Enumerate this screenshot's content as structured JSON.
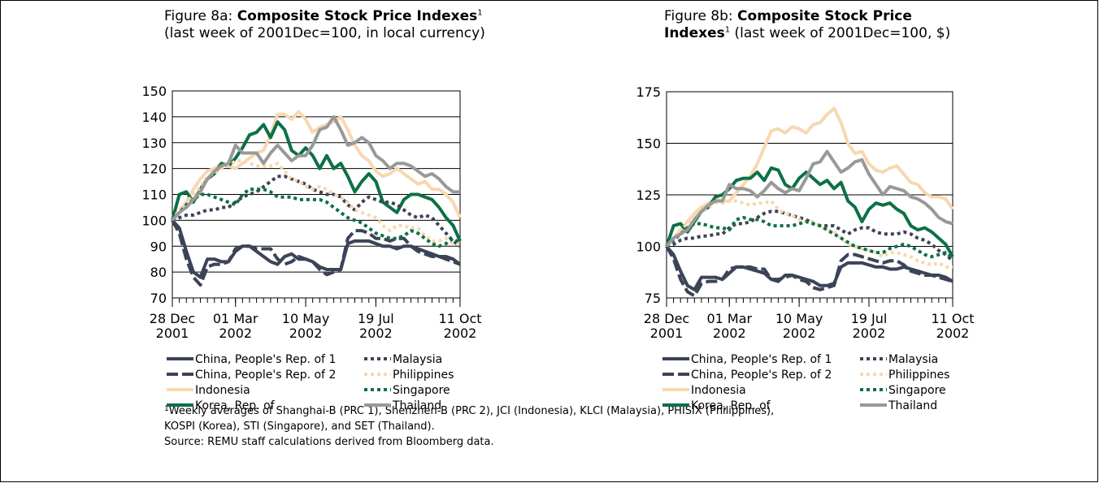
{
  "chart_data": [
    {
      "type": "line",
      "title": {
        "prefix": "Figure 8a: ",
        "bold": "Composite Stock Price Indexes",
        "marker": "1",
        "suffix": " (last week of 2001Dec=100, in local currency)"
      },
      "x": [
        "2001-12-28",
        "2002-01-04",
        "2002-01-11",
        "2002-01-18",
        "2002-01-25",
        "2002-02-01",
        "2002-02-08",
        "2002-02-15",
        "2002-02-22",
        "2002-03-01",
        "2002-03-08",
        "2002-03-15",
        "2002-03-22",
        "2002-03-29",
        "2002-04-05",
        "2002-04-12",
        "2002-04-19",
        "2002-04-26",
        "2002-05-03",
        "2002-05-10",
        "2002-05-17",
        "2002-05-24",
        "2002-05-31",
        "2002-06-07",
        "2002-06-14",
        "2002-06-21",
        "2002-06-28",
        "2002-07-05",
        "2002-07-12",
        "2002-07-19",
        "2002-07-26",
        "2002-08-02",
        "2002-08-09",
        "2002-08-16",
        "2002-08-23",
        "2002-08-30",
        "2002-09-06",
        "2002-09-13",
        "2002-09-20",
        "2002-09-27",
        "2002-10-04",
        "2002-10-11"
      ],
      "xlim": [
        "2001-12-28",
        "2002-10-11"
      ],
      "xticks": [
        {
          "value": "2001-12-28",
          "label": [
            "28 Dec",
            "2001"
          ]
        },
        {
          "value": "2002-03-01",
          "label": [
            "01 Mar",
            "2002"
          ]
        },
        {
          "value": "2002-05-10",
          "label": [
            "10 May",
            "2002"
          ]
        },
        {
          "value": "2002-07-19",
          "label": [
            "19 Jul",
            "2002"
          ]
        },
        {
          "value": "2002-10-11",
          "label": [
            "11 Oct",
            "2002"
          ]
        }
      ],
      "ylim": [
        70,
        150
      ],
      "yticks": [
        70,
        80,
        90,
        100,
        110,
        120,
        130,
        140,
        150
      ],
      "grid": true,
      "series": [
        {
          "name": "China, People's Rep. of 1",
          "color": "#3d4357",
          "dash": "solid",
          "values": [
            100,
            97,
            88,
            80,
            78,
            85,
            85,
            84,
            84,
            88,
            90,
            90,
            88,
            86,
            84,
            83,
            86,
            87,
            85,
            85,
            84,
            82,
            81,
            81,
            81,
            91,
            92,
            92,
            92,
            91,
            90,
            90,
            89,
            90,
            90,
            89,
            88,
            87,
            86,
            86,
            85,
            83
          ]
        },
        {
          "name": "China, People's Rep. of 2",
          "color": "#3d4357",
          "dash": "dashed",
          "values": [
            100,
            95,
            85,
            78,
            75,
            82,
            83,
            83,
            84,
            89,
            90,
            90,
            89,
            89,
            89,
            85,
            83,
            84,
            86,
            85,
            84,
            81,
            79,
            80,
            81,
            93,
            96,
            96,
            95,
            93,
            93,
            92,
            93,
            93,
            90,
            88,
            87,
            86,
            86,
            85,
            84,
            83
          ]
        },
        {
          "name": "Indonesia",
          "color": "#f8d8b0",
          "dash": "solid",
          "values": [
            100,
            103,
            107,
            112,
            116,
            119,
            120,
            122,
            121,
            120,
            122,
            124,
            126,
            127,
            133,
            141,
            141,
            139,
            142,
            139,
            134,
            136,
            137,
            138,
            140,
            135,
            129,
            125,
            123,
            119,
            117,
            118,
            120,
            118,
            116,
            114,
            115,
            112,
            112,
            110,
            107,
            101
          ]
        },
        {
          "name": "Korea, Rep. of",
          "color": "#0d7046",
          "dash": "solid",
          "values": [
            100,
            110,
            111,
            107,
            112,
            116,
            118,
            122,
            121,
            124,
            128,
            133,
            134,
            137,
            132,
            138,
            135,
            127,
            125,
            128,
            125,
            120,
            125,
            120,
            122,
            117,
            111,
            115,
            118,
            115,
            107,
            105,
            103,
            108,
            110,
            110,
            109,
            108,
            105,
            101,
            98,
            92
          ]
        },
        {
          "name": "Malaysia",
          "color": "#3d4357",
          "dash": "dotted",
          "values": [
            100,
            101,
            102,
            102,
            103,
            104,
            104,
            105,
            105,
            107,
            109,
            110,
            111,
            113,
            115,
            117,
            117,
            116,
            115,
            114,
            112,
            111,
            110,
            110,
            109,
            106,
            104,
            107,
            109,
            108,
            107,
            107,
            106,
            104,
            102,
            101,
            102,
            101,
            98,
            95,
            92,
            90
          ]
        },
        {
          "name": "Philippines",
          "color": "#f8d8b0",
          "dash": "dotted",
          "values": [
            100,
            104,
            107,
            110,
            113,
            117,
            118,
            120,
            121,
            123,
            123,
            122,
            121,
            121,
            121,
            122,
            119,
            116,
            115,
            113,
            112,
            113,
            112,
            110,
            109,
            107,
            104,
            103,
            102,
            101,
            98,
            96,
            98,
            98,
            97,
            97,
            94,
            92,
            92,
            93,
            91,
            91
          ]
        },
        {
          "name": "Singapore",
          "color": "#0d7046",
          "dash": "dotted",
          "values": [
            100,
            103,
            106,
            108,
            110,
            110,
            109,
            108,
            107,
            106,
            110,
            112,
            112,
            112,
            111,
            109,
            109,
            109,
            108,
            108,
            108,
            108,
            107,
            105,
            103,
            101,
            100,
            99,
            97,
            95,
            94,
            93,
            93,
            94,
            96,
            95,
            93,
            91,
            90,
            91,
            93,
            91
          ]
        },
        {
          "name": "Thailand",
          "color": "#999999",
          "dash": "solid",
          "values": [
            100,
            103,
            105,
            108,
            111,
            116,
            119,
            121,
            122,
            129,
            126,
            126,
            126,
            122,
            126,
            129,
            126,
            123,
            125,
            125,
            129,
            135,
            136,
            140,
            135,
            129,
            130,
            132,
            130,
            125,
            123,
            120,
            122,
            122,
            121,
            119,
            117,
            118,
            116,
            113,
            111,
            111
          ]
        }
      ]
    },
    {
      "type": "line",
      "title": {
        "prefix": "Figure 8b: ",
        "bold": "Composite Stock Price Indexes",
        "marker": "1",
        "suffix": " (last week of 2001Dec=100, $)"
      },
      "x": [
        "2001-12-28",
        "2002-01-04",
        "2002-01-11",
        "2002-01-18",
        "2002-01-25",
        "2002-02-01",
        "2002-02-08",
        "2002-02-15",
        "2002-02-22",
        "2002-03-01",
        "2002-03-08",
        "2002-03-15",
        "2002-03-22",
        "2002-03-29",
        "2002-04-05",
        "2002-04-12",
        "2002-04-19",
        "2002-04-26",
        "2002-05-03",
        "2002-05-10",
        "2002-05-17",
        "2002-05-24",
        "2002-05-31",
        "2002-06-07",
        "2002-06-14",
        "2002-06-21",
        "2002-06-28",
        "2002-07-05",
        "2002-07-12",
        "2002-07-19",
        "2002-07-26",
        "2002-08-02",
        "2002-08-09",
        "2002-08-16",
        "2002-08-23",
        "2002-08-30",
        "2002-09-06",
        "2002-09-13",
        "2002-09-20",
        "2002-09-27",
        "2002-10-04",
        "2002-10-11"
      ],
      "xlim": [
        "2001-12-28",
        "2002-10-11"
      ],
      "xticks": [
        {
          "value": "2001-12-28",
          "label": [
            "28 Dec",
            "2001"
          ]
        },
        {
          "value": "2002-03-01",
          "label": [
            "01 Mar",
            "2002"
          ]
        },
        {
          "value": "2002-05-10",
          "label": [
            "10 May",
            "2002"
          ]
        },
        {
          "value": "2002-07-19",
          "label": [
            "19 Jul",
            "2002"
          ]
        },
        {
          "value": "2002-10-11",
          "label": [
            "11 Oct",
            "2002"
          ]
        }
      ],
      "ylim": [
        75,
        175
      ],
      "yticks": [
        75,
        100,
        125,
        150,
        175
      ],
      "grid": true,
      "series": [
        {
          "name": "China, People's Rep. of 1",
          "color": "#3d4357",
          "dash": "solid",
          "values": [
            100,
            96,
            88,
            81,
            79,
            85,
            85,
            85,
            84,
            87,
            90,
            90,
            89,
            88,
            87,
            84,
            83,
            86,
            86,
            85,
            84,
            83,
            81,
            81,
            82,
            90,
            92,
            92,
            92,
            91,
            90,
            90,
            89,
            89,
            90,
            89,
            88,
            87,
            86,
            86,
            85,
            83
          ]
        },
        {
          "name": "China, People's Rep. of 2",
          "color": "#3d4357",
          "dash": "dashed",
          "values": [
            100,
            94,
            84,
            78,
            76,
            82,
            83,
            83,
            84,
            89,
            90,
            90,
            90,
            89,
            89,
            84,
            84,
            85,
            86,
            84,
            83,
            80,
            79,
            80,
            81,
            93,
            96,
            96,
            95,
            94,
            93,
            92,
            93,
            93,
            91,
            88,
            87,
            86,
            86,
            85,
            84,
            83
          ]
        },
        {
          "name": "Indonesia",
          "color": "#f8d8b0",
          "dash": "solid",
          "values": [
            100,
            104,
            108,
            112,
            116,
            119,
            121,
            123,
            122,
            122,
            126,
            130,
            134,
            140,
            148,
            156,
            157,
            155,
            158,
            157,
            155,
            159,
            160,
            164,
            167,
            160,
            150,
            145,
            146,
            140,
            137,
            136,
            138,
            139,
            135,
            131,
            130,
            126,
            124,
            124,
            123,
            118
          ]
        },
        {
          "name": "Korea, Rep. of",
          "color": "#0d7046",
          "dash": "solid",
          "values": [
            100,
            110,
            111,
            107,
            112,
            117,
            119,
            124,
            125,
            128,
            132,
            133,
            133,
            136,
            132,
            138,
            137,
            130,
            128,
            133,
            136,
            133,
            130,
            132,
            128,
            131,
            122,
            119,
            112,
            118,
            121,
            120,
            121,
            118,
            116,
            110,
            108,
            109,
            107,
            104,
            101,
            95
          ]
        },
        {
          "name": "Malaysia",
          "color": "#3d4357",
          "dash": "dotted",
          "values": [
            100,
            101,
            103,
            104,
            104,
            105,
            105,
            106,
            106,
            109,
            111,
            111,
            112,
            114,
            116,
            117,
            117,
            116,
            115,
            114,
            113,
            111,
            110,
            110,
            110,
            108,
            106,
            108,
            109,
            109,
            107,
            106,
            106,
            106,
            107,
            106,
            104,
            103,
            101,
            98,
            96,
            93
          ]
        },
        {
          "name": "Philippines",
          "color": "#f8d8b0",
          "dash": "dotted",
          "values": [
            100,
            104,
            108,
            111,
            114,
            117,
            119,
            121,
            121,
            122,
            122,
            121,
            120,
            121,
            121,
            122,
            118,
            116,
            115,
            113,
            112,
            112,
            110,
            108,
            107,
            104,
            101,
            100,
            99,
            98,
            97,
            95,
            97,
            97,
            96,
            95,
            93,
            92,
            91,
            92,
            90,
            90
          ]
        },
        {
          "name": "Singapore",
          "color": "#0d7046",
          "dash": "dotted",
          "values": [
            100,
            103,
            106,
            109,
            111,
            111,
            110,
            109,
            109,
            108,
            113,
            114,
            113,
            113,
            112,
            110,
            110,
            110,
            110,
            111,
            112,
            111,
            110,
            108,
            106,
            104,
            102,
            100,
            99,
            98,
            97,
            97,
            99,
            100,
            101,
            100,
            98,
            96,
            95,
            96,
            97,
            94
          ]
        },
        {
          "name": "Thailand",
          "color": "#999999",
          "dash": "solid",
          "values": [
            100,
            104,
            106,
            108,
            113,
            117,
            120,
            122,
            122,
            130,
            128,
            128,
            127,
            124,
            127,
            131,
            128,
            126,
            128,
            127,
            133,
            140,
            141,
            146,
            141,
            136,
            138,
            141,
            142,
            135,
            130,
            125,
            129,
            128,
            127,
            124,
            123,
            121,
            118,
            114,
            112,
            111
          ]
        }
      ]
    }
  ],
  "notes": {
    "marker": "1",
    "footnote": "Weekly averages of Shanghai-B (PRC 1), Shenzhen-B (PRC 2), JCI (Indonesia), KLCI (Malaysia), PHISIX (Philippines),",
    "footnote_cont": "KOSPI (Korea), STI (Singapore), and SET (Thailand).",
    "source": "Source: REMU staff calculations derived from Bloomberg data."
  }
}
